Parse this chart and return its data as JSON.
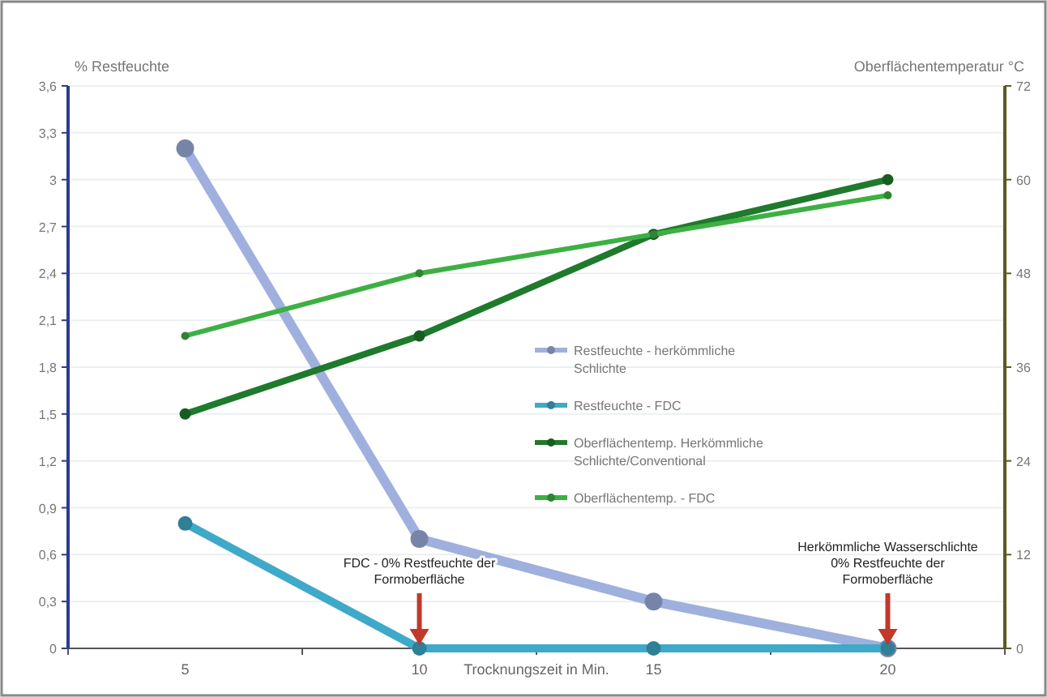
{
  "chart_data": {
    "type": "line",
    "categories": [
      "5",
      "10",
      "15",
      "20"
    ],
    "xlabel": "Trocknungszeit in Min.",
    "ylabel": "% Restfeuchte",
    "y2label": "Oberflächentemperatur °C",
    "ylim": [
      0,
      3.6
    ],
    "yticks": [
      0,
      {
        "value": 0.3,
        "label": "0,3"
      },
      {
        "value": 0.6,
        "label": "0,6"
      },
      {
        "value": 0.9,
        "label": "0,9"
      },
      {
        "value": 1.2,
        "label": "1,2"
      },
      {
        "value": 1.5,
        "label": "1,5"
      },
      {
        "value": 1.8,
        "label": "1,8"
      },
      {
        "value": 2.1,
        "label": "2,1"
      },
      {
        "value": 2.4,
        "label": "2,4"
      },
      {
        "value": 2.7,
        "label": "2,7"
      },
      3,
      {
        "value": 3.3,
        "label": "3,3"
      },
      {
        "value": 3.6,
        "label": "3,6"
      }
    ],
    "y2lim": [
      0,
      72
    ],
    "y2ticks": [
      0,
      12,
      24,
      36,
      48,
      60,
      72
    ],
    "series": [
      {
        "name": "Restfeuchte - herkömmliche Schlichte",
        "color": "#9fb0de",
        "values": [
          3.2,
          0.7,
          0.3,
          0
        ]
      },
      {
        "name": "Restfeuchte - FDC",
        "color": "#3fa9c9",
        "values": [
          0.8,
          0,
          0,
          0
        ]
      },
      {
        "name": "Oberflächentemp. Herkömmliche Schlichte/Conventional",
        "color": "#1f7a2c",
        "axis": "y2",
        "values": [
          30,
          40,
          53,
          60
        ]
      },
      {
        "name": "Oberflächentemp. - FDC",
        "color": "#3db043",
        "axis": "y2",
        "values": [
          40,
          48,
          53,
          58
        ]
      }
    ],
    "annotations": [
      "FDC - 0% Restfeuchte der Formoberfläche",
      "Herkömmliche Wasserschlichte 0% Restfeuchte der Formoberfläche"
    ],
    "grid": "y",
    "legend": "right",
    "marker": "circle",
    "line_style": "solid"
  }
}
